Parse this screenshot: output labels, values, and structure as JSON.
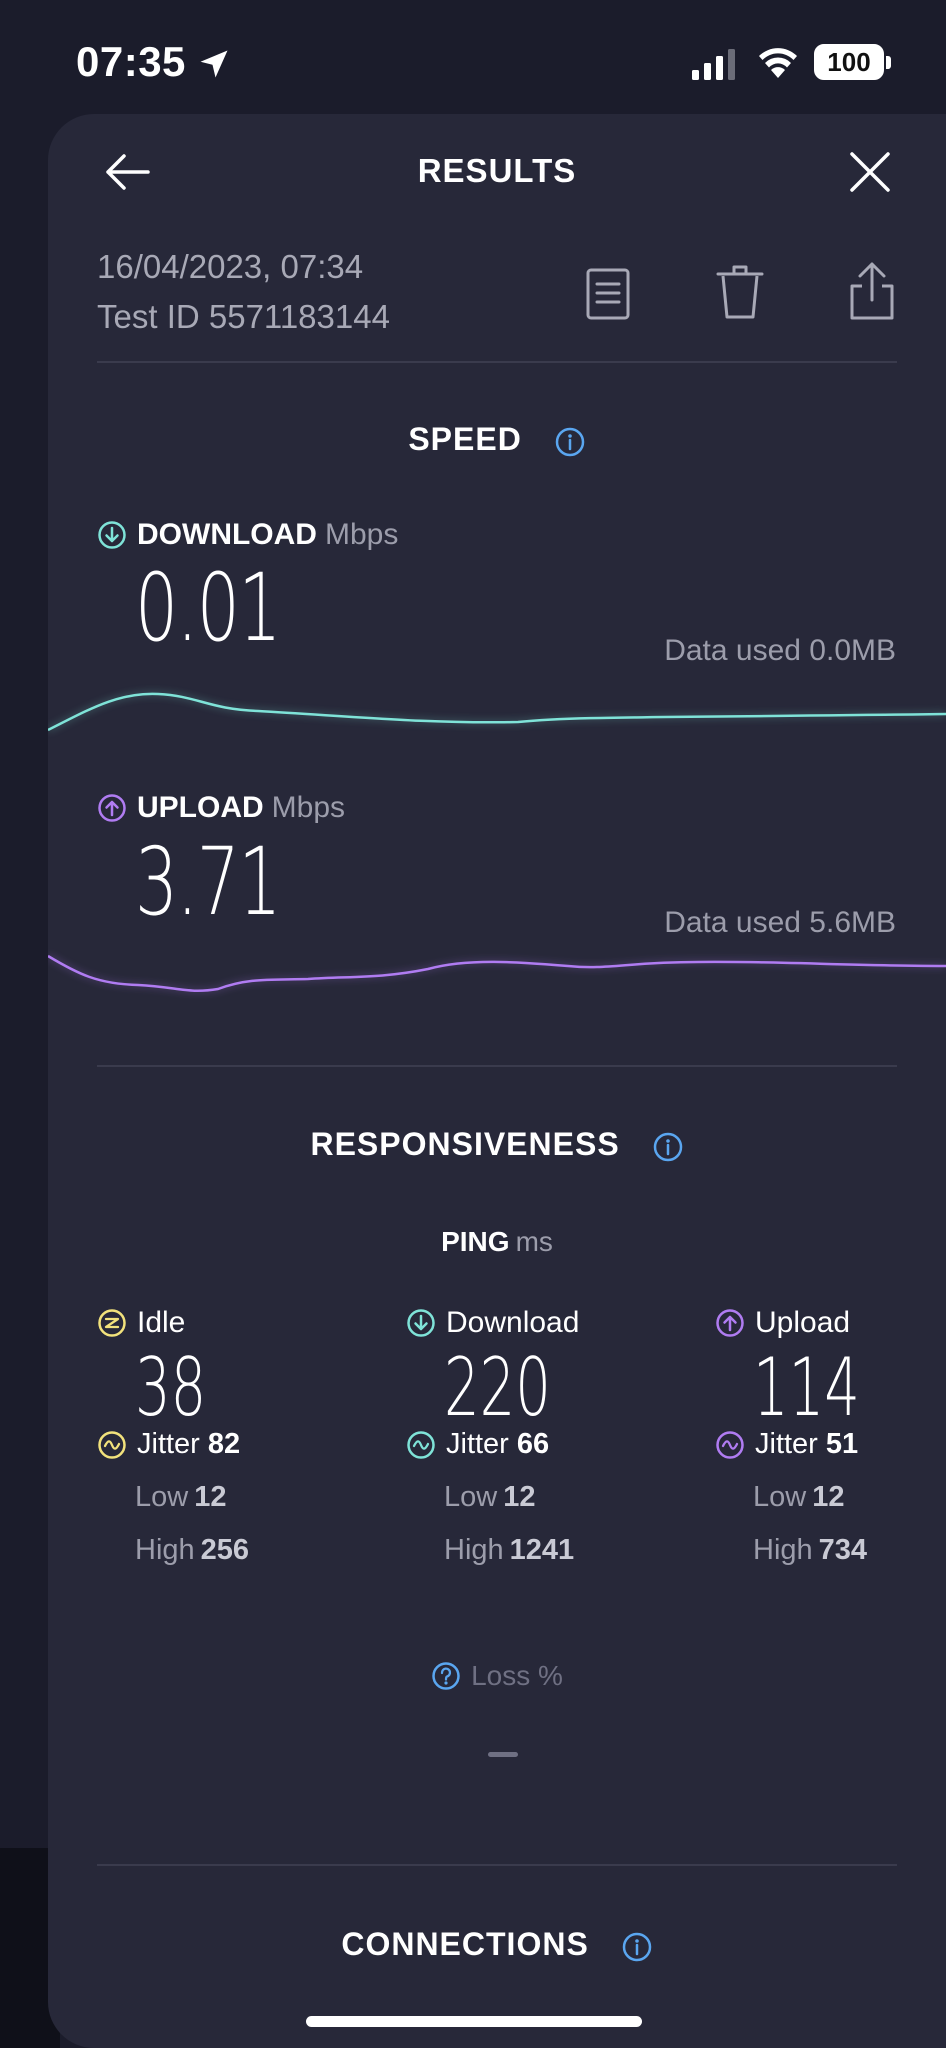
{
  "status_bar": {
    "time": "07:35",
    "battery": "100"
  },
  "header": {
    "title": "RESULTS"
  },
  "meta": {
    "date": "16/04/2023, 07:34",
    "test_id": "Test ID 5571183144"
  },
  "speed": {
    "title": "SPEED",
    "download": {
      "label": "DOWNLOAD",
      "unit": "Mbps",
      "value": "0.01",
      "data_used": "Data used 0.0MB",
      "color": "#7fe3d8"
    },
    "upload": {
      "label": "UPLOAD",
      "unit": "Mbps",
      "value": "3.71",
      "data_used": "Data used 5.6MB",
      "color": "#b07cf2"
    }
  },
  "responsiveness": {
    "title": "RESPONSIVENESS",
    "ping_label": "PING",
    "ping_unit": "ms",
    "columns": [
      {
        "label": "Idle",
        "value": "38",
        "jitter_label": "Jitter",
        "jitter": "82",
        "low_label": "Low",
        "low": "12",
        "high_label": "High",
        "high": "256",
        "color": "#f2e27c"
      },
      {
        "label": "Download",
        "value": "220",
        "jitter_label": "Jitter",
        "jitter": "66",
        "low_label": "Low",
        "low": "12",
        "high_label": "High",
        "high": "1241",
        "color": "#7fe3d8"
      },
      {
        "label": "Upload",
        "value": "114",
        "jitter_label": "Jitter",
        "jitter": "51",
        "low_label": "Low",
        "low": "12",
        "high_label": "High",
        "high": "734",
        "color": "#b07cf2"
      }
    ],
    "loss_label": "Loss %"
  },
  "connections": {
    "title": "CONNECTIONS"
  },
  "colors": {
    "background": "#1b1c2b",
    "sheet": "#272839",
    "info": "#5aa6f0"
  }
}
